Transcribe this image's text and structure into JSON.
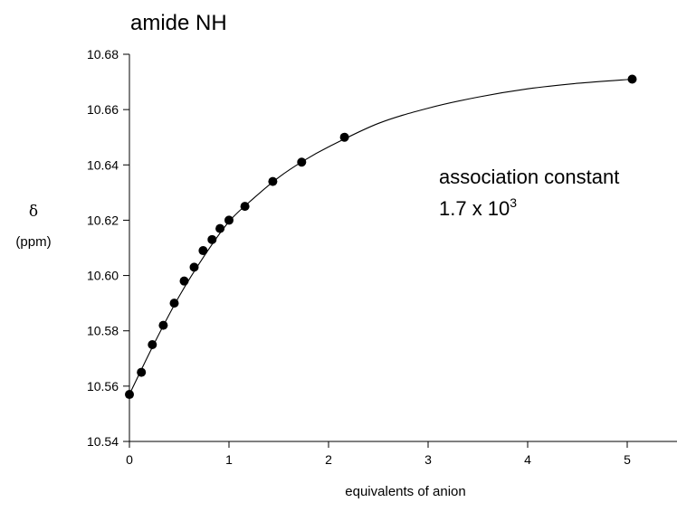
{
  "chart_data": {
    "type": "scatter",
    "title": "amide NH",
    "xlabel": "equivalents of anion",
    "ylabel_symbol": "δ",
    "ylabel_unit": "(ppm)",
    "xlim": [
      0,
      5.5
    ],
    "ylim": [
      10.54,
      10.68
    ],
    "x_ticks": [
      0,
      1,
      2,
      3,
      4,
      5
    ],
    "y_ticks": [
      10.54,
      10.56,
      10.58,
      10.6,
      10.62,
      10.64,
      10.66,
      10.68
    ],
    "y_tick_labels": [
      "10.54",
      "10.56",
      "10.58",
      "10.60",
      "10.62",
      "10.64",
      "10.66",
      "10.68"
    ],
    "grid": false,
    "annotation": {
      "line1": "association constant",
      "line2_base": "1.7 x 10",
      "line2_sup": "3"
    },
    "series": [
      {
        "x": [
          0.0,
          0.12,
          0.23,
          0.34,
          0.45,
          0.55,
          0.65,
          0.74,
          0.83,
          0.91,
          1.0,
          1.16,
          1.44,
          1.73,
          2.16,
          5.05
        ],
        "y": [
          10.557,
          10.565,
          10.575,
          10.582,
          10.59,
          10.598,
          10.603,
          10.609,
          10.613,
          10.617,
          10.62,
          10.625,
          10.634,
          10.641,
          10.65,
          10.671
        ]
      }
    ],
    "fit_curve": {
      "x": [
        0,
        0.25,
        0.5,
        0.75,
        1.0,
        1.25,
        1.5,
        1.75,
        2.0,
        2.5,
        3.0,
        3.5,
        4.0,
        4.5,
        5.05
      ],
      "y": [
        10.557,
        10.5755,
        10.5925,
        10.607,
        10.6195,
        10.628,
        10.6355,
        10.6415,
        10.6465,
        10.655,
        10.6605,
        10.6645,
        10.6675,
        10.6695,
        10.671
      ]
    }
  }
}
